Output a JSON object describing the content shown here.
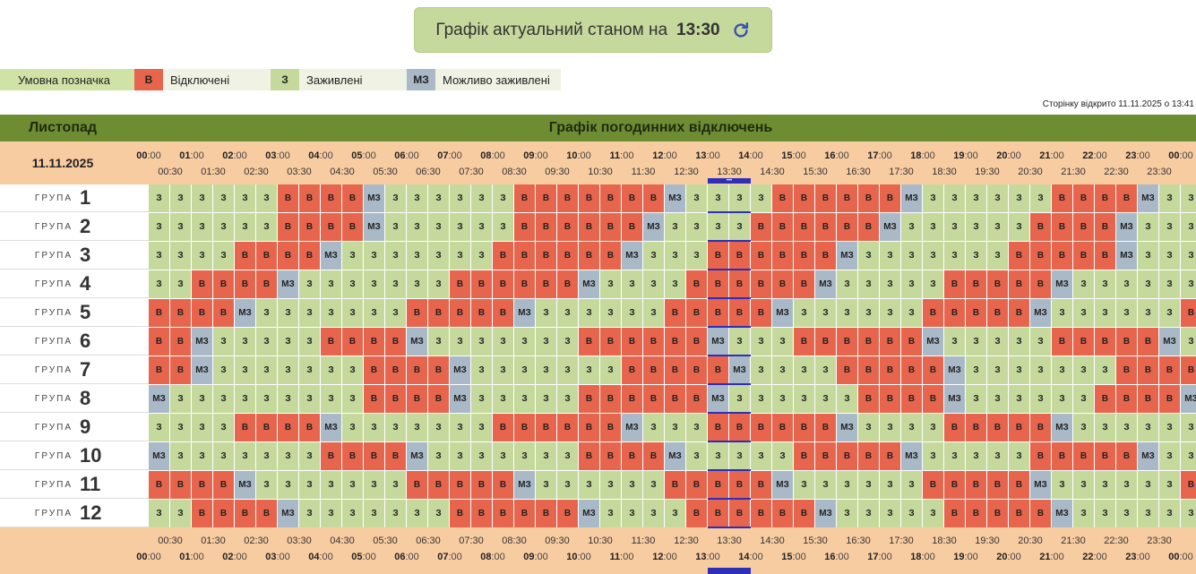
{
  "banner": {
    "title": "Графік актуальний станом на",
    "time": "13:30",
    "refresh_icon": "refresh-icon"
  },
  "legend": {
    "title": "Умовна позначка",
    "items": [
      {
        "code": "В",
        "label": "Відключені"
      },
      {
        "code": "З",
        "label": "Заживлені"
      },
      {
        "code": "МЗ",
        "label": "Можливо заживлені"
      }
    ]
  },
  "opened_text": "Сторінку відкрито 11.11.2025 о 13:41",
  "table": {
    "month": "Листопад",
    "title": "Графік погодинних відключень",
    "date": "11.11.2025",
    "group_word": "ГРУПА",
    "hour_ticks": [
      "00",
      "01",
      "02",
      "03",
      "04",
      "05",
      "06",
      "07",
      "08",
      "09",
      "10",
      "11",
      "12",
      "13",
      "14",
      "15",
      "16",
      "17",
      "18",
      "19",
      "20",
      "21",
      "22",
      "23",
      "00"
    ],
    "half_ticks": [
      "00:30",
      "01:30",
      "02:30",
      "03:30",
      "04:30",
      "05:30",
      "06:30",
      "07:30",
      "08:30",
      "09:30",
      "10:30",
      "11:30",
      "12:30",
      "13:30",
      "14:30",
      "15:30",
      "16:30",
      "17:30",
      "18:30",
      "19:30",
      "20:30",
      "21:30",
      "22:30",
      "23:30"
    ],
    "current_marker": "•••",
    "groups": [
      {
        "name": "1",
        "cells": [
          "З",
          "З",
          "З",
          "З",
          "З",
          "З",
          "В",
          "В",
          "В",
          "В",
          "МЗ",
          "З",
          "З",
          "З",
          "З",
          "З",
          "З",
          "В",
          "В",
          "В",
          "В",
          "В",
          "В",
          "В",
          "МЗ",
          "З",
          "З",
          "З",
          "З",
          "В",
          "В",
          "В",
          "В",
          "В",
          "В",
          "МЗ",
          "З",
          "З",
          "З",
          "З",
          "З",
          "З",
          "В",
          "В",
          "В",
          "В",
          "МЗ",
          "З",
          "З",
          "З"
        ]
      },
      {
        "name": "2",
        "cells": [
          "З",
          "З",
          "З",
          "З",
          "З",
          "З",
          "В",
          "В",
          "В",
          "В",
          "МЗ",
          "З",
          "З",
          "З",
          "З",
          "З",
          "З",
          "В",
          "В",
          "В",
          "В",
          "В",
          "В",
          "МЗ",
          "З",
          "З",
          "З",
          "З",
          "В",
          "В",
          "В",
          "В",
          "В",
          "В",
          "МЗ",
          "З",
          "З",
          "З",
          "З",
          "З",
          "З",
          "В",
          "В",
          "В",
          "В",
          "МЗ",
          "З",
          "З",
          "З",
          "З"
        ]
      },
      {
        "name": "3",
        "cells": [
          "З",
          "З",
          "З",
          "З",
          "В",
          "В",
          "В",
          "В",
          "МЗ",
          "З",
          "З",
          "З",
          "З",
          "З",
          "З",
          "З",
          "В",
          "В",
          "В",
          "В",
          "В",
          "В",
          "МЗ",
          "З",
          "З",
          "З",
          "В",
          "В",
          "В",
          "В",
          "В",
          "В",
          "МЗ",
          "З",
          "З",
          "З",
          "З",
          "З",
          "З",
          "З",
          "В",
          "В",
          "В",
          "В",
          "В",
          "МЗ",
          "З",
          "З",
          "З",
          "З"
        ]
      },
      {
        "name": "4",
        "cells": [
          "З",
          "З",
          "В",
          "В",
          "В",
          "В",
          "МЗ",
          "З",
          "З",
          "З",
          "З",
          "З",
          "З",
          "З",
          "В",
          "В",
          "В",
          "В",
          "В",
          "В",
          "МЗ",
          "З",
          "З",
          "З",
          "З",
          "В",
          "В",
          "В",
          "В",
          "В",
          "В",
          "МЗ",
          "З",
          "З",
          "З",
          "З",
          "З",
          "В",
          "В",
          "В",
          "В",
          "В",
          "МЗ",
          "З",
          "З",
          "З",
          "З",
          "З",
          "З",
          "З"
        ]
      },
      {
        "name": "5",
        "cells": [
          "В",
          "В",
          "В",
          "В",
          "МЗ",
          "З",
          "З",
          "З",
          "З",
          "З",
          "З",
          "З",
          "В",
          "В",
          "В",
          "В",
          "В",
          "МЗ",
          "З",
          "З",
          "З",
          "З",
          "З",
          "З",
          "В",
          "В",
          "В",
          "В",
          "В",
          "МЗ",
          "З",
          "З",
          "З",
          "З",
          "З",
          "З",
          "В",
          "В",
          "В",
          "В",
          "В",
          "МЗ",
          "З",
          "З",
          "З",
          "З",
          "З",
          "З",
          "В",
          "В"
        ]
      },
      {
        "name": "6",
        "cells": [
          "В",
          "В",
          "МЗ",
          "З",
          "З",
          "З",
          "З",
          "З",
          "В",
          "В",
          "В",
          "В",
          "МЗ",
          "З",
          "З",
          "З",
          "З",
          "З",
          "З",
          "З",
          "В",
          "В",
          "В",
          "В",
          "В",
          "В",
          "МЗ",
          "З",
          "З",
          "З",
          "В",
          "В",
          "В",
          "В",
          "В",
          "В",
          "МЗ",
          "З",
          "З",
          "З",
          "З",
          "З",
          "В",
          "В",
          "В",
          "В",
          "В",
          "МЗ",
          "З",
          "З"
        ]
      },
      {
        "name": "7",
        "cells": [
          "В",
          "В",
          "МЗ",
          "З",
          "З",
          "З",
          "З",
          "З",
          "З",
          "З",
          "В",
          "В",
          "В",
          "В",
          "МЗ",
          "З",
          "З",
          "З",
          "З",
          "З",
          "З",
          "З",
          "В",
          "В",
          "В",
          "В",
          "В",
          "МЗ",
          "З",
          "З",
          "З",
          "З",
          "В",
          "В",
          "В",
          "В",
          "В",
          "МЗ",
          "З",
          "З",
          "З",
          "З",
          "З",
          "З",
          "З",
          "В",
          "В",
          "В",
          "В",
          "В"
        ]
      },
      {
        "name": "8",
        "cells": [
          "МЗ",
          "З",
          "З",
          "З",
          "З",
          "З",
          "З",
          "З",
          "З",
          "З",
          "В",
          "В",
          "В",
          "В",
          "МЗ",
          "З",
          "З",
          "З",
          "З",
          "З",
          "В",
          "В",
          "В",
          "В",
          "В",
          "В",
          "МЗ",
          "З",
          "З",
          "З",
          "З",
          "З",
          "З",
          "В",
          "В",
          "В",
          "В",
          "МЗ",
          "З",
          "З",
          "З",
          "З",
          "З",
          "З",
          "В",
          "В",
          "В",
          "В",
          "МЗ",
          "З"
        ]
      },
      {
        "name": "9",
        "cells": [
          "З",
          "З",
          "З",
          "З",
          "В",
          "В",
          "В",
          "В",
          "МЗ",
          "З",
          "З",
          "З",
          "З",
          "З",
          "З",
          "З",
          "В",
          "В",
          "В",
          "В",
          "В",
          "В",
          "МЗ",
          "З",
          "З",
          "З",
          "В",
          "В",
          "В",
          "В",
          "В",
          "В",
          "МЗ",
          "З",
          "З",
          "З",
          "З",
          "В",
          "В",
          "В",
          "В",
          "В",
          "МЗ",
          "З",
          "З",
          "З",
          "З",
          "З",
          "З",
          "З"
        ]
      },
      {
        "name": "10",
        "cells": [
          "МЗ",
          "З",
          "З",
          "З",
          "З",
          "З",
          "З",
          "З",
          "В",
          "В",
          "В",
          "В",
          "МЗ",
          "З",
          "З",
          "З",
          "З",
          "З",
          "З",
          "З",
          "В",
          "В",
          "В",
          "В",
          "МЗ",
          "З",
          "З",
          "З",
          "З",
          "З",
          "В",
          "В",
          "В",
          "В",
          "В",
          "МЗ",
          "З",
          "З",
          "З",
          "З",
          "З",
          "В",
          "В",
          "В",
          "В",
          "В",
          "МЗ",
          "З",
          "З",
          "З"
        ]
      },
      {
        "name": "11",
        "cells": [
          "В",
          "В",
          "В",
          "В",
          "МЗ",
          "З",
          "З",
          "З",
          "З",
          "З",
          "З",
          "З",
          "В",
          "В",
          "В",
          "В",
          "В",
          "МЗ",
          "З",
          "З",
          "З",
          "З",
          "З",
          "З",
          "В",
          "В",
          "В",
          "В",
          "В",
          "МЗ",
          "З",
          "З",
          "З",
          "З",
          "З",
          "З",
          "В",
          "В",
          "В",
          "В",
          "В",
          "МЗ",
          "З",
          "З",
          "З",
          "З",
          "З",
          "З",
          "В",
          "В"
        ]
      },
      {
        "name": "12",
        "cells": [
          "З",
          "З",
          "В",
          "В",
          "В",
          "В",
          "МЗ",
          "З",
          "З",
          "З",
          "З",
          "З",
          "З",
          "З",
          "В",
          "В",
          "В",
          "В",
          "В",
          "В",
          "МЗ",
          "З",
          "З",
          "З",
          "З",
          "В",
          "В",
          "В",
          "В",
          "В",
          "В",
          "МЗ",
          "З",
          "З",
          "З",
          "З",
          "З",
          "В",
          "В",
          "В",
          "В",
          "В",
          "МЗ",
          "З",
          "З",
          "З",
          "З",
          "З",
          "З",
          "З"
        ]
      }
    ]
  }
}
